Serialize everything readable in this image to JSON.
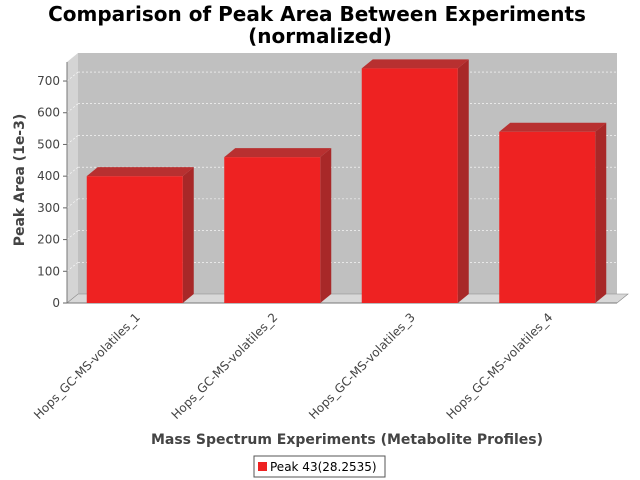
{
  "chart_data": {
    "type": "bar",
    "title": "Comparison of Peak Area Between Experiments",
    "subtitle": "(normalized)",
    "xlabel": "Mass Spectrum Experiments (Metabolite Profiles)",
    "ylabel": "Peak Area (1e-3)",
    "categories": [
      "Hops_GC-MS-volatiles_1",
      "Hops_GC-MS-volatiles_2",
      "Hops_GC-MS-volatiles_3",
      "Hops_GC-MS-volatiles_4"
    ],
    "series": [
      {
        "name": "Peak 43(28.2535)",
        "values": [
          400,
          460,
          740,
          540
        ],
        "color": "#ee2222"
      }
    ],
    "ylim": [
      0,
      760
    ],
    "yticks": [
      0,
      100,
      200,
      300,
      400,
      500,
      600,
      700
    ],
    "grid": true,
    "legend_position": "bottom",
    "plot_background": "#c0c0c0"
  }
}
